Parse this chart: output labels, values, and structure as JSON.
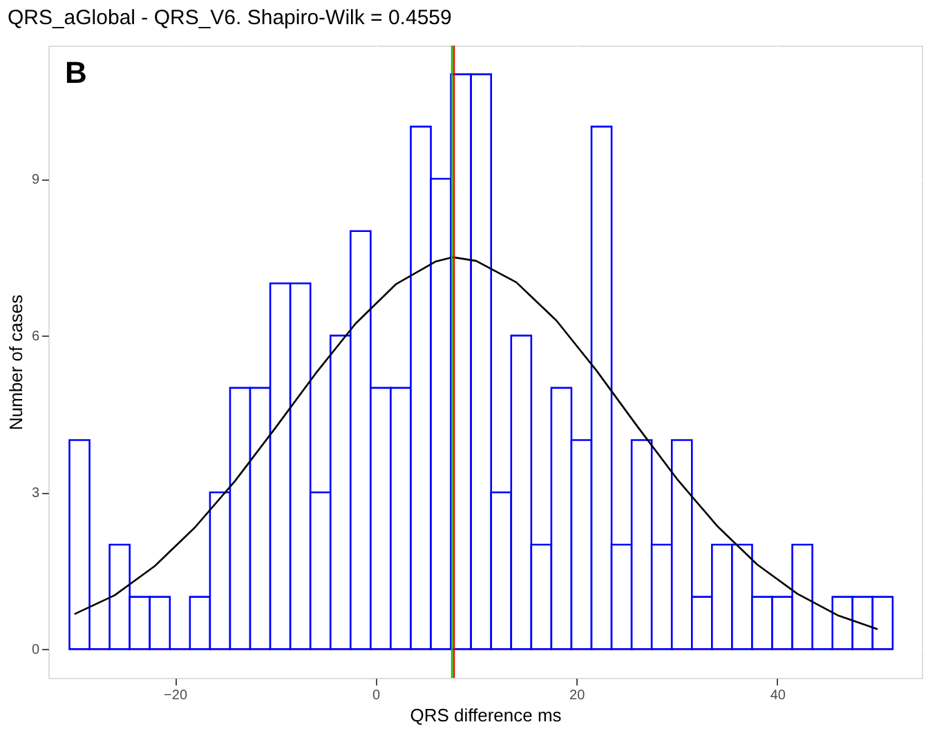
{
  "chart_data": {
    "type": "histogram",
    "title": "QRS_aGlobal - QRS_V6. Shapiro-Wilk =    0.4559",
    "xlabel": "QRS difference ms",
    "ylabel": "Number of cases",
    "bins": [
      -30.5,
      -28.5,
      -26.5,
      -24.5,
      -22.5,
      -20.5,
      -18.5,
      -16.5,
      -14.5,
      -12.5,
      -10.5,
      -8.5,
      -6.5,
      -4.5,
      -2.5,
      -0.5,
      1.5,
      3.5,
      5.5,
      7.5,
      9.5,
      11.5,
      13.5,
      15.5,
      17.5,
      19.5,
      21.5,
      23.5,
      25.5,
      27.5,
      29.5,
      31.5,
      33.5,
      35.5,
      37.5,
      39.5,
      41.5,
      43.5,
      45.5,
      47.5,
      49.5,
      51.5
    ],
    "values": [
      4,
      0,
      2,
      1,
      1,
      0,
      1,
      3,
      5,
      5,
      7,
      7,
      3,
      6,
      8,
      5,
      5,
      10,
      9,
      11,
      11,
      3,
      6,
      2,
      5,
      4,
      10,
      2,
      4,
      2,
      4,
      1,
      2,
      2,
      1,
      1,
      2,
      0,
      1,
      1,
      1
    ],
    "color": "#0000ff",
    "series": [
      {
        "type": "line",
        "color": "#000000",
        "x": [
          -30,
          -26,
          -22,
          -18,
          -14,
          -10,
          -6,
          -2,
          2,
          6,
          7.7,
          10,
          14,
          18,
          22,
          26,
          30,
          34,
          38,
          42,
          46,
          50
        ],
        "values": [
          0.67,
          1.03,
          1.59,
          2.33,
          3.22,
          4.23,
          5.27,
          6.23,
          6.98,
          7.42,
          7.5,
          7.43,
          7.02,
          6.29,
          5.33,
          4.28,
          3.26,
          2.36,
          1.62,
          1.06,
          0.65,
          0.38
        ]
      }
    ],
    "ref_lines": [
      {
        "axis": "x",
        "value": 7.6,
        "color": "#00cc00"
      },
      {
        "axis": "x",
        "value": 7.8,
        "color": "#ff0000"
      }
    ],
    "annotations": [
      "B"
    ],
    "xlim": [
      -32.6,
      54.4
    ],
    "ylim": [
      -0.55,
      11.55
    ],
    "xticks": [
      -20,
      0,
      20,
      40
    ],
    "yticks": [
      0,
      3,
      6,
      9
    ],
    "grid": true
  }
}
